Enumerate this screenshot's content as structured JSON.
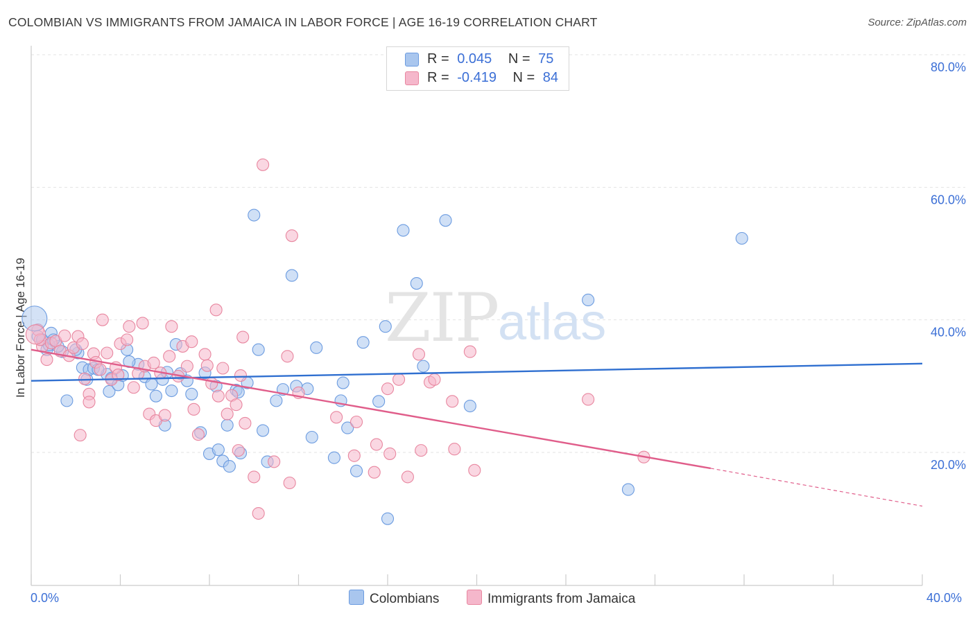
{
  "title": "COLOMBIAN VS IMMIGRANTS FROM JAMAICA IN LABOR FORCE | AGE 16-19 CORRELATION CHART",
  "source": "Source: ZipAtlas.com",
  "watermark": {
    "zip": "ZIP",
    "atlas": "atlas"
  },
  "legend": {
    "rows": [
      {
        "r_label": "R =",
        "r_value": "0.045",
        "n_label": "N =",
        "n_value": "75",
        "color": "#a9c6ee"
      },
      {
        "r_label": "R =",
        "r_value": "-0.419",
        "n_label": "N =",
        "n_value": "84",
        "color": "#f5b7cb"
      }
    ]
  },
  "bottom_legend": [
    {
      "label": "Colombians",
      "color": "#a9c6ee"
    },
    {
      "label": "Immigrants from Jamaica",
      "color": "#f5b7cb"
    }
  ],
  "chart_data": {
    "type": "scatter",
    "title": "COLOMBIAN VS IMMIGRANTS FROM JAMAICA IN LABOR FORCE | AGE 16-19 CORRELATION CHART",
    "xlabel": "",
    "ylabel": "In Labor Force | Age 16-19",
    "xlim": [
      0,
      40
    ],
    "ylim": [
      0,
      80
    ],
    "x_tick_labels": [
      "0.0%",
      "40.0%"
    ],
    "y_tick_labels": [
      "20.0%",
      "40.0%",
      "60.0%",
      "80.0%"
    ],
    "y_ticks": [
      20,
      40,
      60,
      80
    ],
    "grid": true,
    "legend_position": "top-center",
    "series": [
      {
        "name": "Colombians",
        "color": "#6b9be0",
        "fill": "#a9c6ee",
        "trend": {
          "x": [
            0,
            40
          ],
          "y": [
            30.8,
            33.4
          ],
          "color": "#2f6fd0"
        },
        "points": [
          [
            0.3,
            37.5
          ],
          [
            0.5,
            37.0
          ],
          [
            0.9,
            38.0
          ],
          [
            0.7,
            35.5
          ],
          [
            1.4,
            35.2
          ],
          [
            2.1,
            35.0
          ],
          [
            2.3,
            32.8
          ],
          [
            2.5,
            31.0
          ],
          [
            2.6,
            32.5
          ],
          [
            2.8,
            32.7
          ],
          [
            3.4,
            31.8
          ],
          [
            3.6,
            31.2
          ],
          [
            3.5,
            29.2
          ],
          [
            3.9,
            30.2
          ],
          [
            4.1,
            31.6
          ],
          [
            4.3,
            35.5
          ],
          [
            4.8,
            33.3
          ],
          [
            5.1,
            31.4
          ],
          [
            5.4,
            30.3
          ],
          [
            5.6,
            28.5
          ],
          [
            5.9,
            31.0
          ],
          [
            6.1,
            32.1
          ],
          [
            6.3,
            29.3
          ],
          [
            6.5,
            36.3
          ],
          [
            6.7,
            31.9
          ],
          [
            7.0,
            30.8
          ],
          [
            7.2,
            28.8
          ],
          [
            7.6,
            23.0
          ],
          [
            7.8,
            32.0
          ],
          [
            8.0,
            19.8
          ],
          [
            8.3,
            30.0
          ],
          [
            8.6,
            18.7
          ],
          [
            8.8,
            24.1
          ],
          [
            8.9,
            17.9
          ],
          [
            9.2,
            29.4
          ],
          [
            9.4,
            19.9
          ],
          [
            9.7,
            30.5
          ],
          [
            10.2,
            35.5
          ],
          [
            10.4,
            23.3
          ],
          [
            10.6,
            18.6
          ],
          [
            11.0,
            27.8
          ],
          [
            11.3,
            29.5
          ],
          [
            11.9,
            30.0
          ],
          [
            12.4,
            29.6
          ],
          [
            12.8,
            35.8
          ],
          [
            13.6,
            19.2
          ],
          [
            13.9,
            27.8
          ],
          [
            14.2,
            23.7
          ],
          [
            14.6,
            17.2
          ],
          [
            14.9,
            36.6
          ],
          [
            15.6,
            27.7
          ],
          [
            15.9,
            39.0
          ],
          [
            16.7,
            53.5
          ],
          [
            17.3,
            45.5
          ],
          [
            17.6,
            33.0
          ],
          [
            18.6,
            55.0
          ],
          [
            19.7,
            27.0
          ],
          [
            12.6,
            22.3
          ],
          [
            10.0,
            55.8
          ],
          [
            11.7,
            46.7
          ],
          [
            25.0,
            43.0
          ],
          [
            26.8,
            14.4
          ],
          [
            31.9,
            52.3
          ],
          [
            16.0,
            10.0
          ],
          [
            1.6,
            27.8
          ],
          [
            1.2,
            36.0
          ],
          [
            0.8,
            36.2
          ],
          [
            2.0,
            35.5
          ],
          [
            4.4,
            33.7
          ],
          [
            6.0,
            24.1
          ],
          [
            9.3,
            29.1
          ],
          [
            8.4,
            20.4
          ],
          [
            14.0,
            30.5
          ],
          [
            1.0,
            37.0
          ],
          [
            3.0,
            32.5
          ]
        ]
      },
      {
        "name": "Immigrants from Jamaica",
        "color": "#e8869f",
        "fill": "#f5b7cb",
        "trend": {
          "x": [
            0,
            30.5
          ],
          "y": [
            35.5,
            17.6
          ],
          "dashed_to": [
            40,
            11.9
          ],
          "color": "#e05d8a"
        },
        "points": [
          [
            0.3,
            38.5
          ],
          [
            0.5,
            36.0
          ],
          [
            0.7,
            34.0
          ],
          [
            0.9,
            36.5
          ],
          [
            1.1,
            36.8
          ],
          [
            1.3,
            35.3
          ],
          [
            1.5,
            37.6
          ],
          [
            1.7,
            34.6
          ],
          [
            1.9,
            35.8
          ],
          [
            2.1,
            37.5
          ],
          [
            2.3,
            36.4
          ],
          [
            2.2,
            22.6
          ],
          [
            2.4,
            31.1
          ],
          [
            2.6,
            28.8
          ],
          [
            2.6,
            27.6
          ],
          [
            2.8,
            34.9
          ],
          [
            2.9,
            33.6
          ],
          [
            3.1,
            32.5
          ],
          [
            3.2,
            40.0
          ],
          [
            3.4,
            35.0
          ],
          [
            3.6,
            31.0
          ],
          [
            3.8,
            32.8
          ],
          [
            3.9,
            31.7
          ],
          [
            4.0,
            36.4
          ],
          [
            4.3,
            37.0
          ],
          [
            4.4,
            39.0
          ],
          [
            4.6,
            29.8
          ],
          [
            4.8,
            31.9
          ],
          [
            5.0,
            39.5
          ],
          [
            5.1,
            33.0
          ],
          [
            5.3,
            25.8
          ],
          [
            5.5,
            33.5
          ],
          [
            5.6,
            24.8
          ],
          [
            5.8,
            32.0
          ],
          [
            6.0,
            25.6
          ],
          [
            6.2,
            34.5
          ],
          [
            6.3,
            39.0
          ],
          [
            6.6,
            31.5
          ],
          [
            6.8,
            36.0
          ],
          [
            7.0,
            33.0
          ],
          [
            7.2,
            36.7
          ],
          [
            7.3,
            26.5
          ],
          [
            7.5,
            22.7
          ],
          [
            7.8,
            34.8
          ],
          [
            7.9,
            33.1
          ],
          [
            8.1,
            30.4
          ],
          [
            8.3,
            41.5
          ],
          [
            8.4,
            28.5
          ],
          [
            8.6,
            32.7
          ],
          [
            8.8,
            25.8
          ],
          [
            9.0,
            28.6
          ],
          [
            9.2,
            27.2
          ],
          [
            9.3,
            20.3
          ],
          [
            9.4,
            31.6
          ],
          [
            9.5,
            37.4
          ],
          [
            9.6,
            24.4
          ],
          [
            10.0,
            16.3
          ],
          [
            10.2,
            10.8
          ],
          [
            10.4,
            63.4
          ],
          [
            10.9,
            18.6
          ],
          [
            11.5,
            34.5
          ],
          [
            11.6,
            15.4
          ],
          [
            11.7,
            52.7
          ],
          [
            12.0,
            29.0
          ],
          [
            13.7,
            25.3
          ],
          [
            14.5,
            19.5
          ],
          [
            14.6,
            24.6
          ],
          [
            15.4,
            17.0
          ],
          [
            15.5,
            21.2
          ],
          [
            16.0,
            29.6
          ],
          [
            16.1,
            19.8
          ],
          [
            16.5,
            31.0
          ],
          [
            16.9,
            16.3
          ],
          [
            17.4,
            34.8
          ],
          [
            17.5,
            20.3
          ],
          [
            17.9,
            30.6
          ],
          [
            18.1,
            31.0
          ],
          [
            18.9,
            27.7
          ],
          [
            19.0,
            20.5
          ],
          [
            19.7,
            35.2
          ],
          [
            19.9,
            17.3
          ],
          [
            25.0,
            28.0
          ],
          [
            27.5,
            19.3
          ],
          [
            0.4,
            37.0
          ]
        ]
      }
    ]
  }
}
